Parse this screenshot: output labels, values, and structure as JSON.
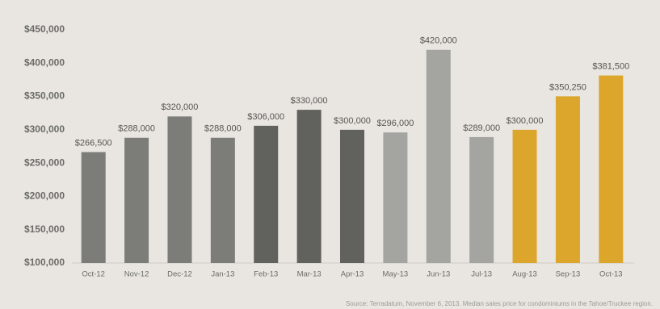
{
  "chart_data": {
    "type": "bar",
    "categories": [
      "Oct-12",
      "Nov-12",
      "Dec-12",
      "Jan-13",
      "Feb-13",
      "Mar-13",
      "Apr-13",
      "May-13",
      "Jun-13",
      "Jul-13",
      "Aug-13",
      "Sep-13",
      "Oct-13"
    ],
    "values": [
      266500,
      288000,
      320000,
      288000,
      306000,
      330000,
      300000,
      296000,
      420000,
      289000,
      300000,
      350250,
      381500
    ],
    "value_labels": [
      "$266,500",
      "$288,000",
      "$320,000",
      "$288,000",
      "$306,000",
      "$330,000",
      "$300,000",
      "$296,000",
      "$420,000",
      "$289,000",
      "$300,000",
      "$350,250",
      "$381,500"
    ],
    "colors": [
      "#7c7c79",
      "#7c7c79",
      "#7c7c79",
      "#7c7c79",
      "#61625d",
      "#61625d",
      "#61625d",
      "#a4a4a0",
      "#a4a4a0",
      "#a4a4a0",
      "#dca62c",
      "#dca62c",
      "#dca62c"
    ],
    "ylim": [
      100000,
      450000
    ],
    "yticks": [
      {
        "value": 100000,
        "label": "$100,000"
      },
      {
        "value": 150000,
        "label": "$150,000"
      },
      {
        "value": 200000,
        "label": "$200,000"
      },
      {
        "value": 250000,
        "label": "$250,000"
      },
      {
        "value": 300000,
        "label": "$300,000"
      },
      {
        "value": 350000,
        "label": "$350,000"
      },
      {
        "value": 400000,
        "label": "$400,000"
      },
      {
        "value": 450000,
        "label": "$450,000"
      }
    ],
    "grid": false,
    "source": "Source: Terradatum,  November 6, 2013. Median sales price for condominiums in the Tahoe/Truckee region."
  }
}
